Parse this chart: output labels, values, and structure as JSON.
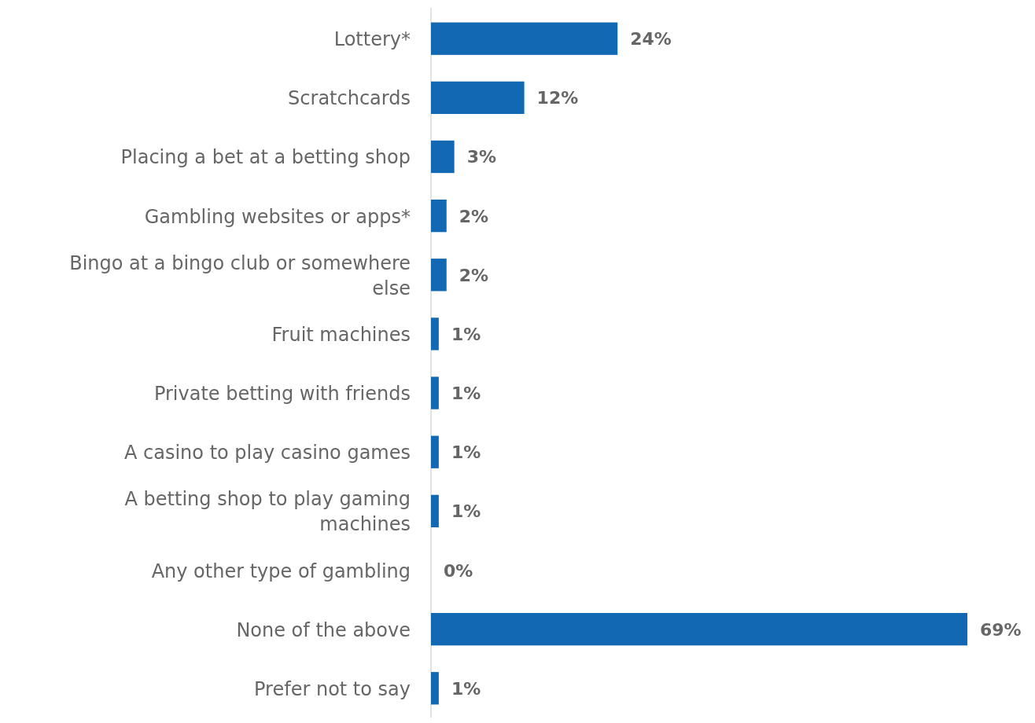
{
  "chart_data": {
    "type": "bar",
    "orientation": "horizontal",
    "categories": [
      "Lottery*",
      "Scratchcards",
      "Placing a bet at a betting shop",
      "Gambling websites or apps*",
      "Bingo at a bingo club or somewhere else",
      "Fruit machines",
      "Private betting with friends",
      "A casino to play casino games",
      "A betting shop to play gaming machines",
      "Any other type of gambling",
      "None of the above",
      "Prefer not to say"
    ],
    "values": [
      24,
      12,
      3,
      2,
      2,
      1,
      1,
      1,
      1,
      0,
      69,
      1
    ],
    "value_labels": [
      "24%",
      "12%",
      "3%",
      "2%",
      "2%",
      "1%",
      "1%",
      "1%",
      "1%",
      "0%",
      "69%",
      "1%"
    ],
    "color": "#1368b3"
  }
}
